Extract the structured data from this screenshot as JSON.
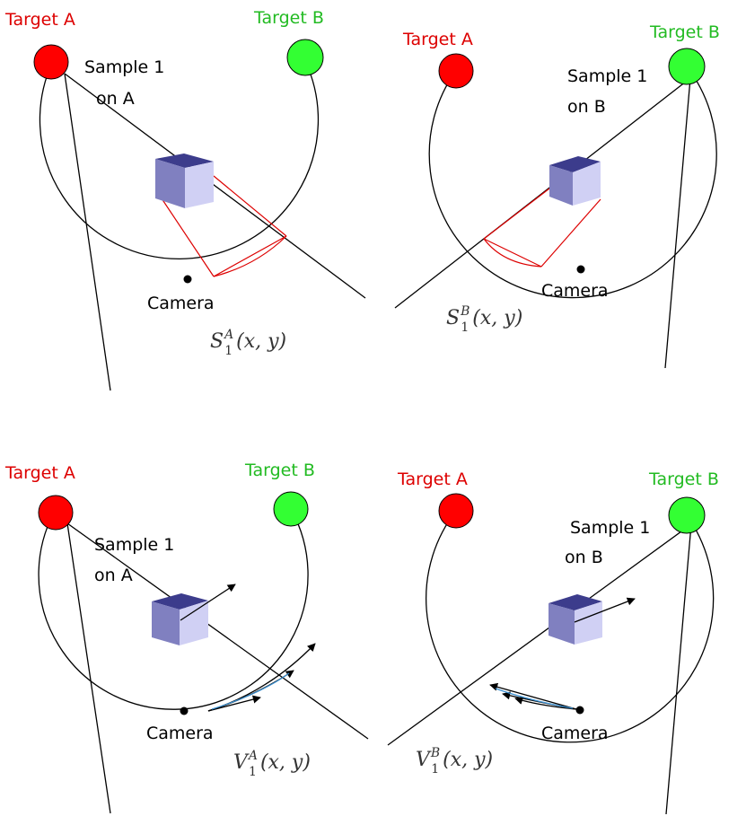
{
  "labels": {
    "target_a": "Target A",
    "target_b": "Target B",
    "sample_a_line1": "Sample 1",
    "sample_a_line2": "on A",
    "sample_b_line1": "Sample 1",
    "sample_b_line2": "on B",
    "camera": "Camera"
  },
  "formulas": {
    "s1a": {
      "base": "S",
      "sup": "A",
      "sub": "1",
      "args": "(x, y)"
    },
    "s1b": {
      "base": "S",
      "sup": "B",
      "sub": "1",
      "args": "(x, y)"
    },
    "v1a": {
      "base": "V",
      "sup": "A",
      "sub": "1",
      "args": "(x, y)"
    },
    "v1b": {
      "base": "V",
      "sup": "B",
      "sub": "1",
      "args": "(x, y)"
    }
  },
  "colors": {
    "target_a": "#ff0000",
    "target_b": "#33ff33",
    "label_a": "#dd0000",
    "label_b": "#22bb22",
    "frustum": "#dd0000",
    "cube_top": "#3c3c8c",
    "cube_left": "#8080c0",
    "cube_right": "#d0d0f4",
    "arrow_blue": "#3a8fd0"
  }
}
